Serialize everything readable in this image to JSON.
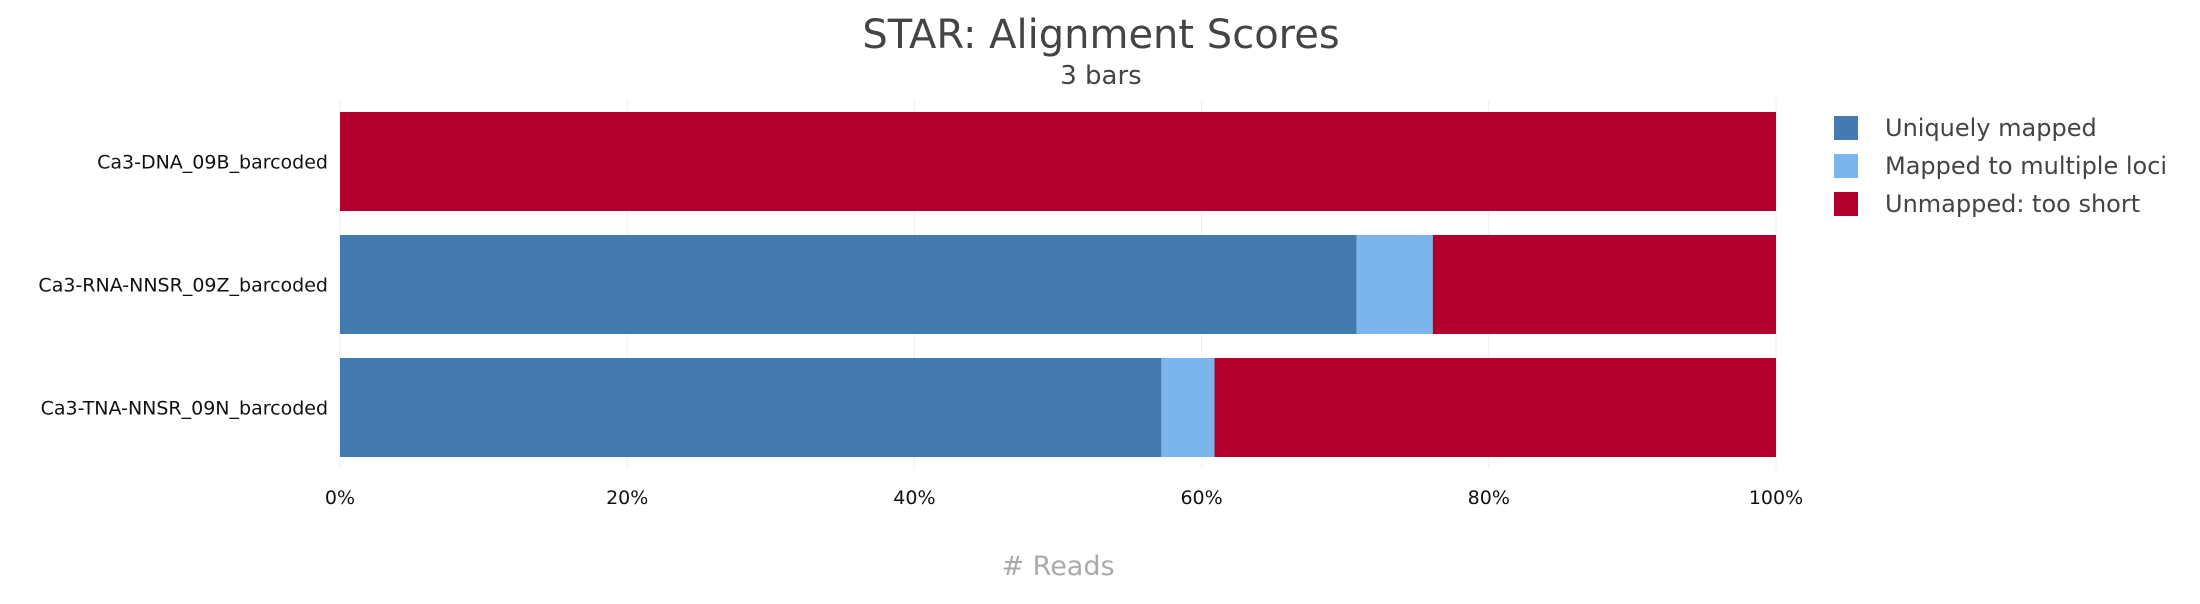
{
  "chart_data": {
    "type": "bar",
    "orientation": "horizontal",
    "stacked": true,
    "percent": true,
    "title": "STAR: Alignment Scores",
    "subtitle": "3 bars",
    "xlabel": "# Reads",
    "ylabel": "",
    "xlim": [
      0,
      100
    ],
    "x_ticks": [
      "0%",
      "20%",
      "40%",
      "60%",
      "80%",
      "100%"
    ],
    "x_tick_values": [
      0,
      20,
      40,
      60,
      80,
      100
    ],
    "grid": true,
    "legend_position": "right",
    "categories": [
      "Ca3-DNA_09B_barcoded",
      "Ca3-RNA-NNSR_09Z_barcoded",
      "Ca3-TNA-NNSR_09N_barcoded"
    ],
    "series": [
      {
        "name": "Uniquely mapped",
        "color": "#437bb1",
        "values": [
          0,
          70.8,
          57.2
        ]
      },
      {
        "name": "Mapped to multiple loci",
        "color": "#7cb5ec",
        "values": [
          0,
          5.3,
          3.7
        ]
      },
      {
        "name": "Unmapped: too short",
        "color": "#b1002d",
        "values": [
          100,
          23.9,
          39.1
        ]
      }
    ]
  }
}
